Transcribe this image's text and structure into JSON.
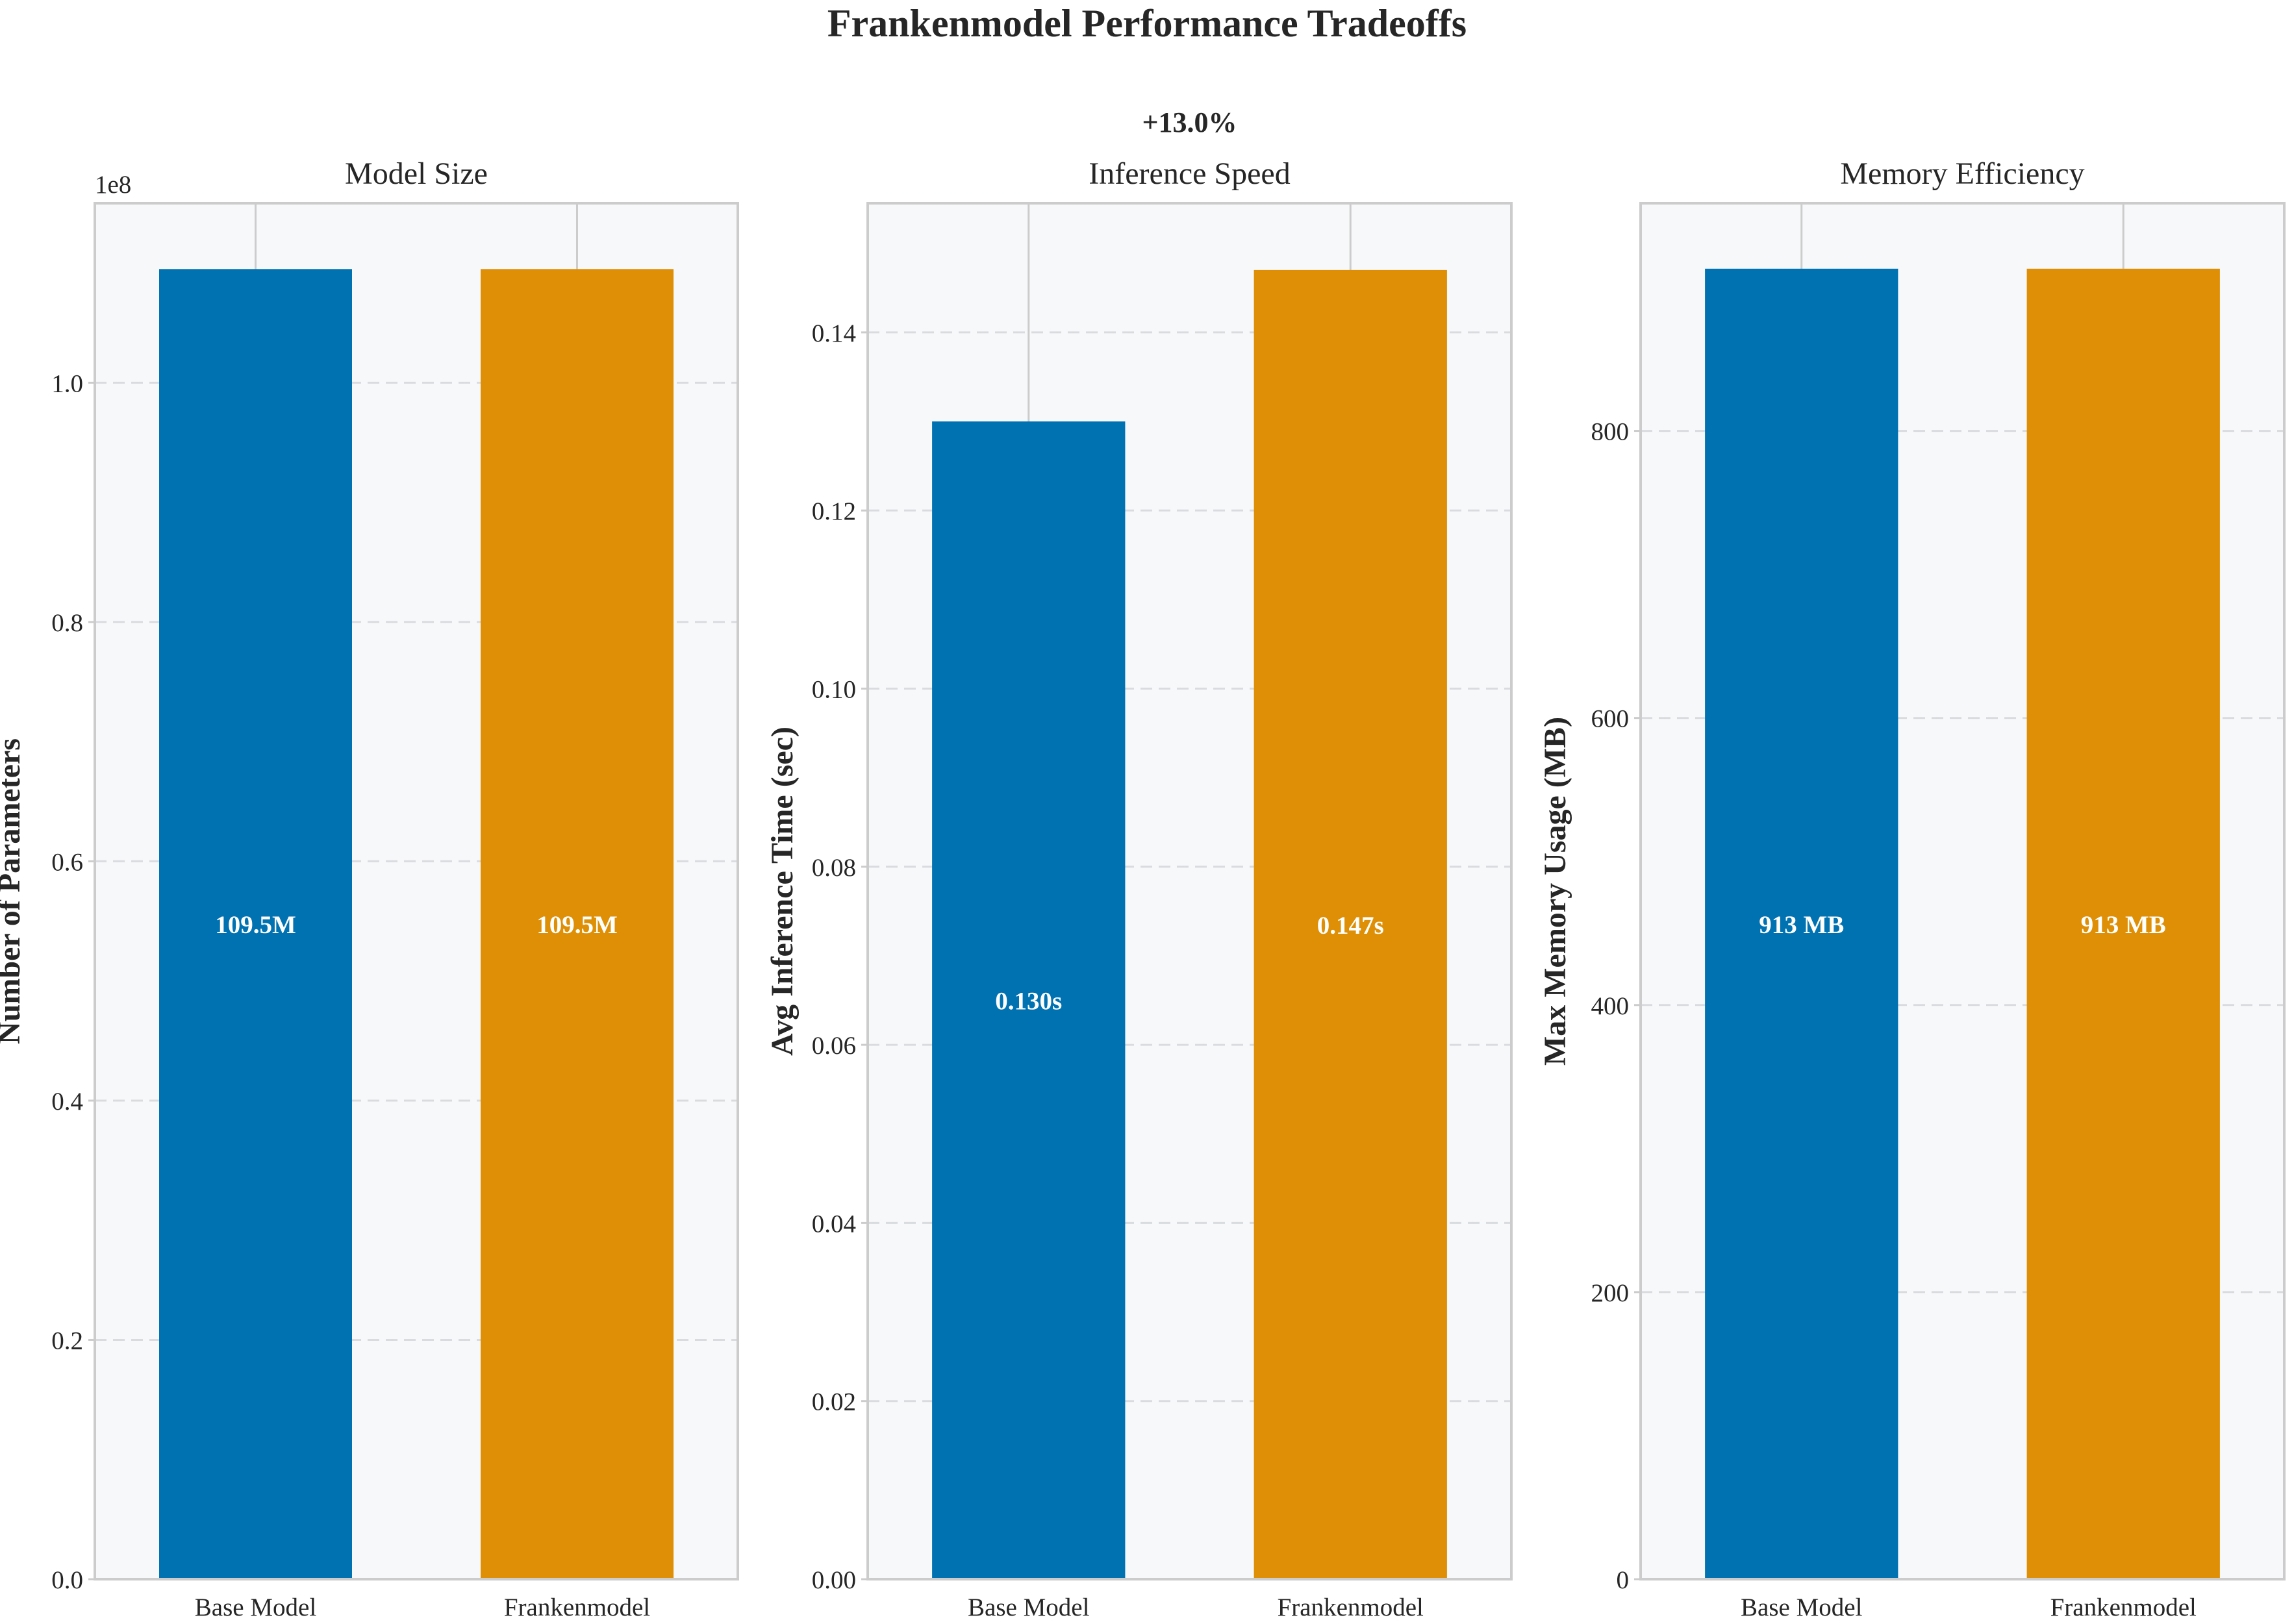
{
  "figure": {
    "title": "Frankenmodel Performance Tradeoffs",
    "colors": {
      "base": "#0072B2",
      "franken": "#DE8F05",
      "panel_bg": "#F7F8FA",
      "spine": "#CCCCCC",
      "grid": "#D9DBDF"
    }
  },
  "chart_data": [
    {
      "type": "bar",
      "title": "Model Size",
      "categories": [
        "Base Model",
        "Frankenmodel"
      ],
      "values": [
        109500000,
        109500000
      ],
      "bar_labels": [
        "109.5M",
        "109.5M"
      ],
      "ylabel": "Number of Parameters",
      "offset_label": "1e8",
      "ylim": [
        0,
        115000000
      ],
      "yticks": [
        0,
        20000000,
        40000000,
        60000000,
        80000000,
        100000000
      ],
      "ytick_labels": [
        "0.0",
        "0.2",
        "0.4",
        "0.6",
        "0.8",
        "1.0"
      ],
      "annotation": "",
      "grid": true
    },
    {
      "type": "bar",
      "title": "Inference Speed",
      "categories": [
        "Base Model",
        "Frankenmodel"
      ],
      "values": [
        0.13,
        0.147
      ],
      "bar_labels": [
        "0.130s",
        "0.147s"
      ],
      "ylabel": "Avg Inference Time (sec)",
      "offset_label": "",
      "ylim": [
        0,
        0.1545
      ],
      "yticks": [
        0,
        0.02,
        0.04,
        0.06,
        0.08,
        0.1,
        0.12,
        0.14
      ],
      "ytick_labels": [
        "0.00",
        "0.02",
        "0.04",
        "0.06",
        "0.08",
        "0.10",
        "0.12",
        "0.14"
      ],
      "annotation": "+13.0%",
      "grid": true
    },
    {
      "type": "bar",
      "title": "Memory Efficiency",
      "categories": [
        "Base Model",
        "Frankenmodel"
      ],
      "values": [
        913,
        913
      ],
      "bar_labels": [
        "913 MB",
        "913 MB"
      ],
      "ylabel": "Max Memory Usage (MB)",
      "offset_label": "",
      "ylim": [
        0,
        958.6
      ],
      "yticks": [
        0,
        200,
        400,
        600,
        800
      ],
      "ytick_labels": [
        "0",
        "200",
        "400",
        "600",
        "800"
      ],
      "annotation": "",
      "grid": true
    }
  ]
}
